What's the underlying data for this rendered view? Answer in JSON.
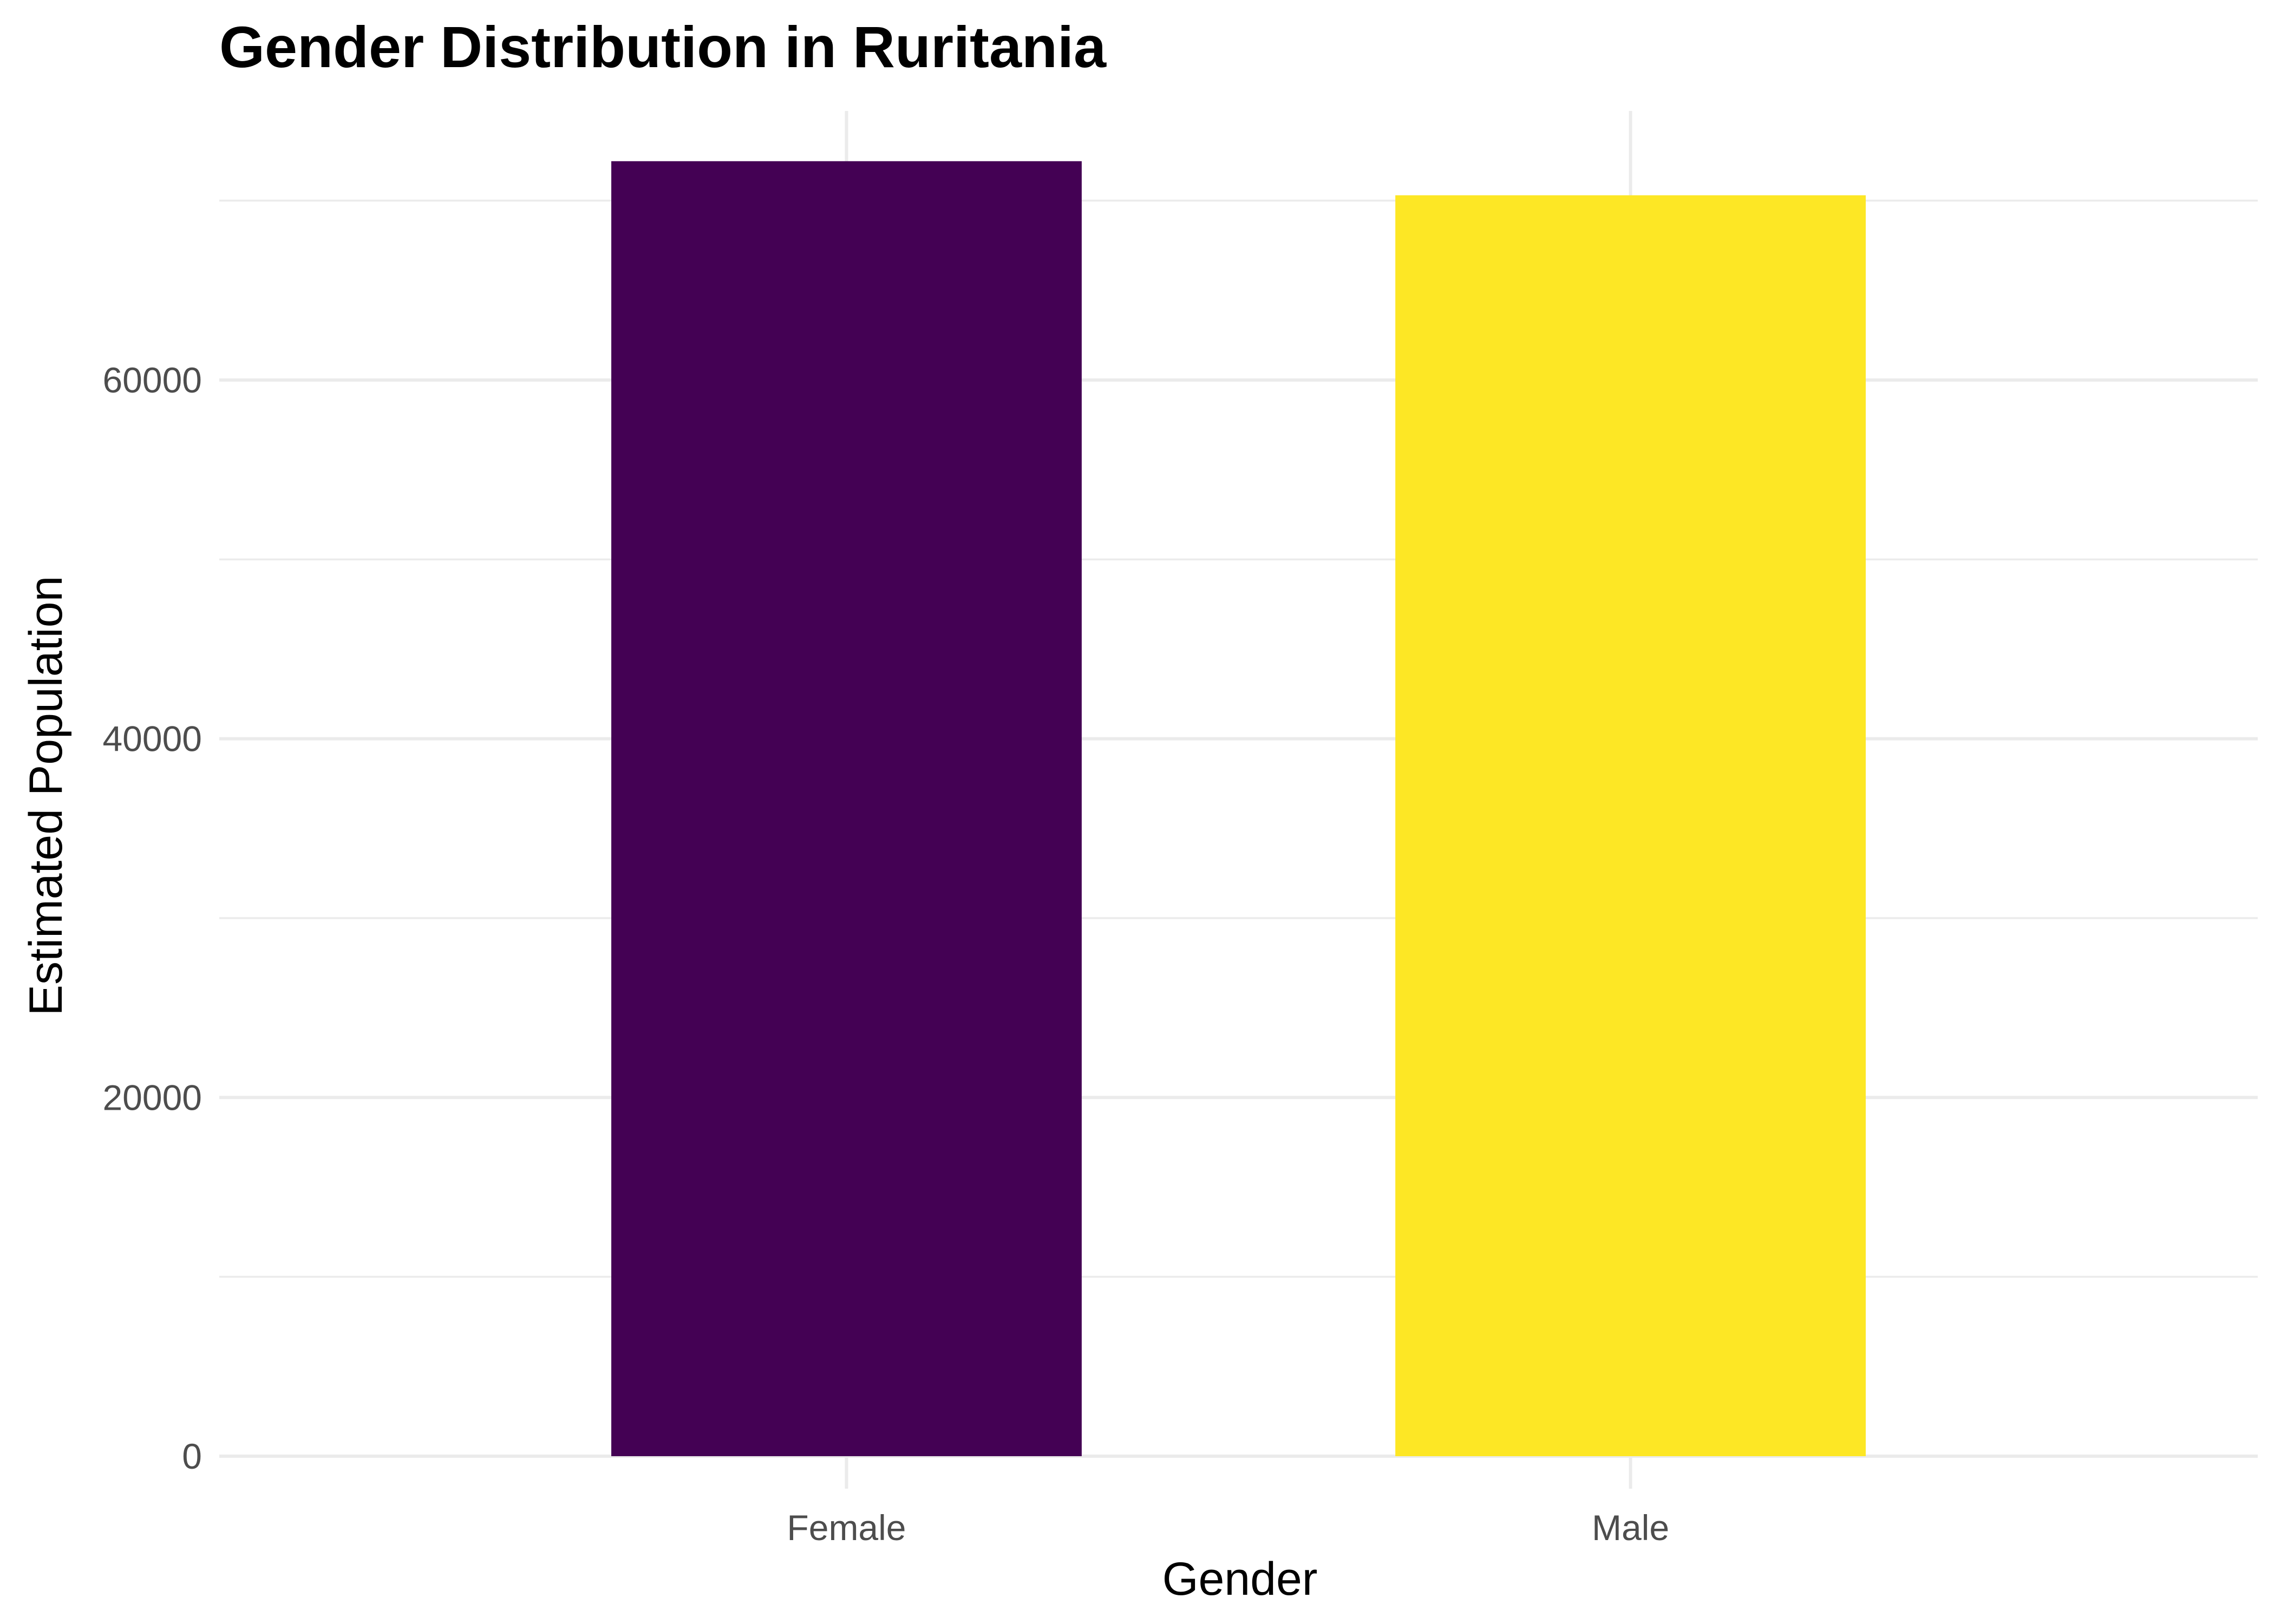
{
  "chart_data": {
    "type": "bar",
    "title": "Gender Distribution in Ruritania",
    "xlabel": "Gender",
    "ylabel": "Estimated Population",
    "categories": [
      "Female",
      "Male"
    ],
    "values": [
      72200,
      70300
    ],
    "colors": [
      "#440154",
      "#FDE725"
    ],
    "ylim": [
      0,
      75000
    ],
    "yticks": [
      0,
      20000,
      40000,
      60000
    ],
    "ytick_labels": [
      "0",
      "20000",
      "40000",
      "60000"
    ],
    "grid": true,
    "legend": "none"
  }
}
